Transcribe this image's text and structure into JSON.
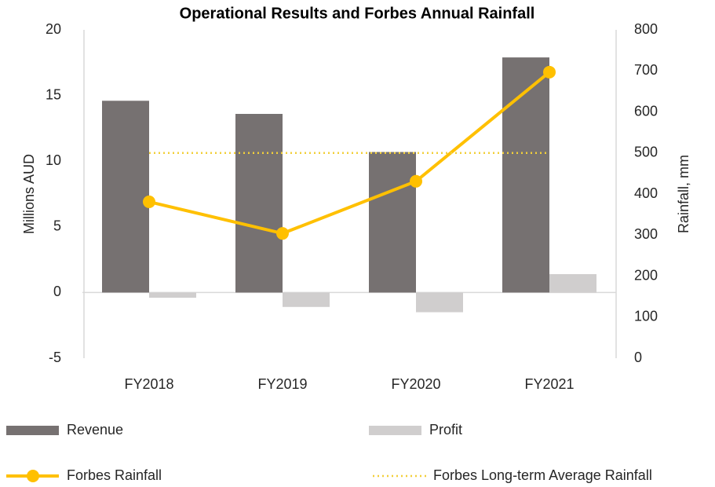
{
  "chart_data": {
    "type": "bar",
    "title": "Operational Results and Forbes Annual Rainfall",
    "categories": [
      "FY2018",
      "FY2019",
      "FY2020",
      "FY2021"
    ],
    "ylabel": "Millions AUD",
    "y2label": "Rainfall, mm",
    "ylim": [
      -5,
      20
    ],
    "yticks": [
      -5,
      0,
      5,
      10,
      15,
      20
    ],
    "y2lim": [
      0,
      800
    ],
    "y2ticks": [
      0,
      100,
      200,
      300,
      400,
      500,
      600,
      700,
      800
    ],
    "series": [
      {
        "name": "Revenue",
        "type": "bar",
        "color": "#767171",
        "values": [
          14.6,
          13.6,
          10.7,
          17.9
        ]
      },
      {
        "name": "Profit",
        "type": "bar",
        "color": "#d0cece",
        "values": [
          -0.4,
          -1.1,
          -1.5,
          1.4
        ]
      },
      {
        "name": "Forbes Rainfall",
        "type": "line",
        "axis": "y2",
        "color": "#ffc000",
        "values": [
          381,
          304,
          431,
          697
        ]
      },
      {
        "name": "Forbes Long-term Average Rainfall",
        "type": "dotted",
        "axis": "y2",
        "color": "#f2cf3a",
        "values": [
          500,
          500,
          500,
          500
        ]
      }
    ]
  }
}
